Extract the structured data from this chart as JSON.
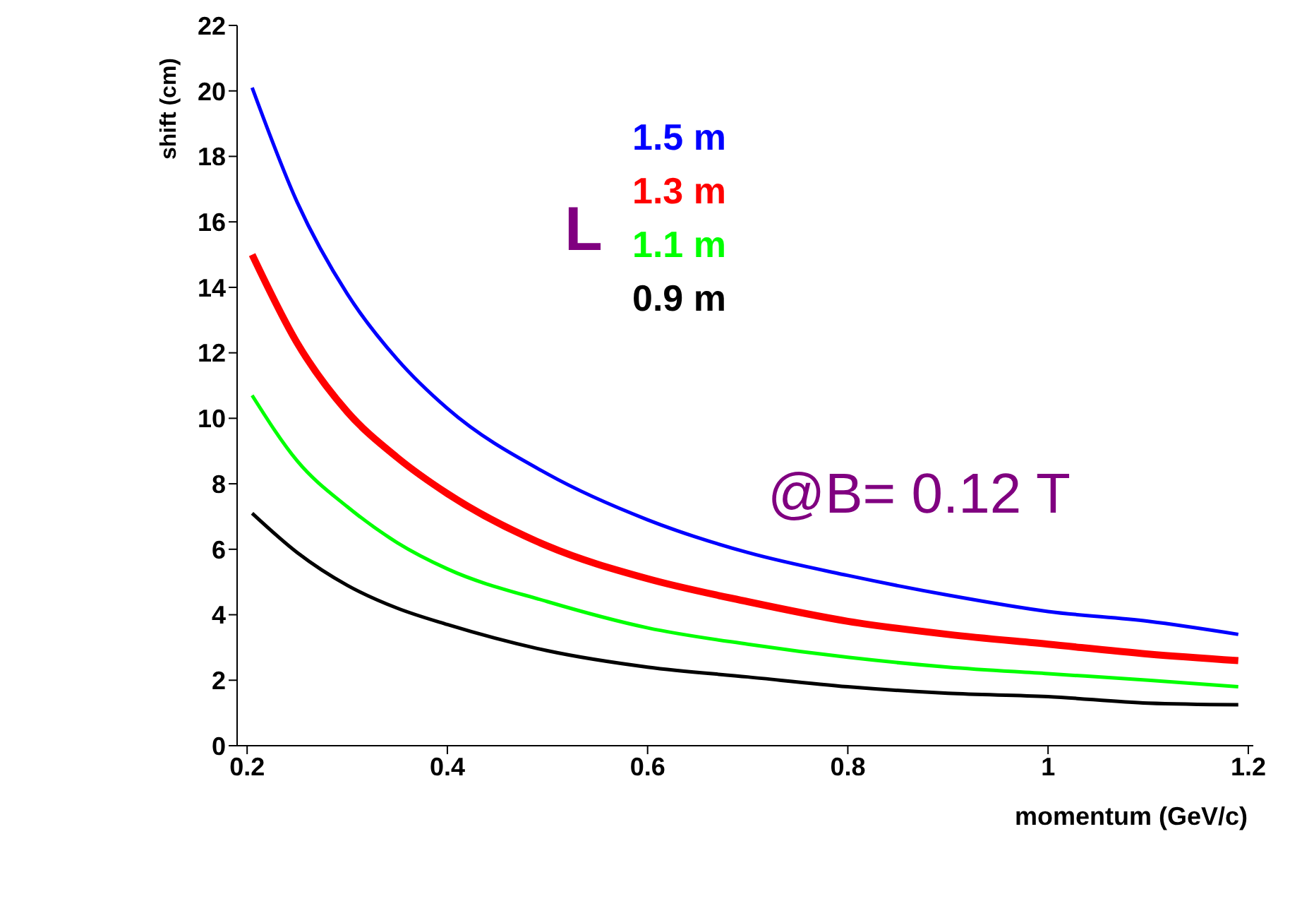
{
  "chart_data": {
    "type": "line",
    "xlabel": "momentum (GeV/c)",
    "ylabel": "shift (cm)",
    "x": [
      0.205,
      0.25,
      0.3,
      0.35,
      0.4,
      0.5,
      0.6,
      0.7,
      0.8,
      0.9,
      1.0,
      1.1,
      1.19
    ],
    "series": [
      {
        "name": "1.5 m",
        "color": "#0000ff",
        "values": [
          20.1,
          16.6,
          13.8,
          11.8,
          10.3,
          8.3,
          6.9,
          5.9,
          5.2,
          4.6,
          4.1,
          3.8,
          3.4
        ]
      },
      {
        "name": "1.3 m",
        "color": "#ff0000",
        "values": [
          15.0,
          12.3,
          10.2,
          8.8,
          7.7,
          6.1,
          5.1,
          4.4,
          3.8,
          3.4,
          3.1,
          2.8,
          2.6
        ]
      },
      {
        "name": "1.1 m",
        "color": "#00ff00",
        "values": [
          10.7,
          8.7,
          7.3,
          6.2,
          5.4,
          4.4,
          3.6,
          3.1,
          2.7,
          2.4,
          2.2,
          2.0,
          1.8
        ]
      },
      {
        "name": "0.9 m",
        "color": "#000000",
        "values": [
          7.1,
          5.9,
          4.9,
          4.2,
          3.7,
          2.9,
          2.4,
          2.1,
          1.8,
          1.6,
          1.5,
          1.3,
          1.25
        ]
      }
    ],
    "xlim": [
      0.19,
      1.205
    ],
    "xticks": [
      0.2,
      0.4,
      0.6,
      0.8,
      {
        "value": 1,
        "label": "1"
      },
      1.2
    ],
    "ylim": [
      0,
      22
    ],
    "yticks": [
      0,
      2,
      4,
      6,
      8,
      10,
      12,
      14,
      16,
      18,
      20,
      22
    ],
    "grid": false,
    "legend": "top",
    "marker": "none",
    "line_style": "solid",
    "annotations": [
      "L",
      "@B= 0.12 T"
    ]
  }
}
